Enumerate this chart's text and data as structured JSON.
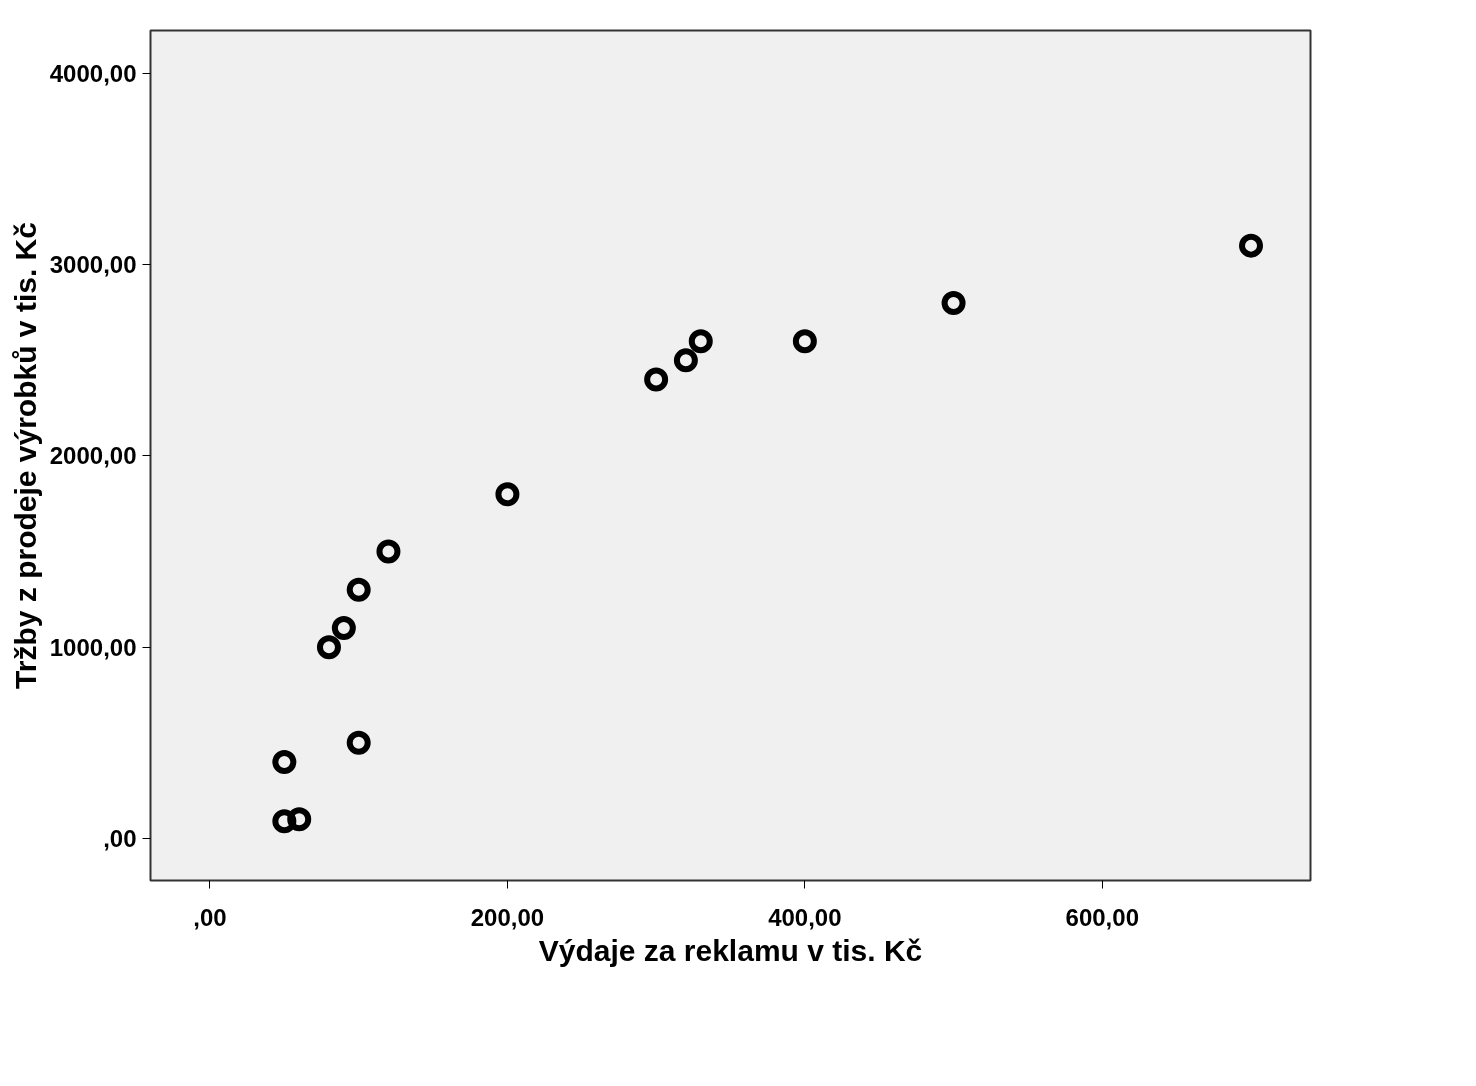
{
  "chart_data": {
    "type": "scatter",
    "xlabel": "Výdaje za reklamu v tis. Kč",
    "ylabel": "Tržby z prodeje výrobků v tis. Kč",
    "x": [
      50,
      50,
      60,
      100,
      80,
      90,
      100,
      120,
      200,
      300,
      320,
      330,
      400,
      500,
      700
    ],
    "series": [
      {
        "color": "#000000",
        "values": [
          400,
          90,
          100,
          500,
          1000,
          1100,
          1300,
          1500,
          1800,
          2400,
          2500,
          2600,
          2600,
          2800,
          3100
        ]
      }
    ],
    "xlim": [
      -40,
      740
    ],
    "ylim": [
      -220,
      4225
    ],
    "xticks": [
      {
        "value": 0,
        "label": ",00"
      },
      {
        "value": 200,
        "label": "200,00"
      },
      {
        "value": 400,
        "label": "400,00"
      },
      {
        "value": 600,
        "label": "600,00"
      }
    ],
    "yticks": [
      {
        "value": 0,
        "label": ",00"
      },
      {
        "value": 1000,
        "label": "1000,00"
      },
      {
        "value": 2000,
        "label": "2000,00"
      },
      {
        "value": 3000,
        "label": "3000,00"
      },
      {
        "value": 4000,
        "label": "4000,00"
      }
    ],
    "grid": false,
    "marker": "circle"
  }
}
